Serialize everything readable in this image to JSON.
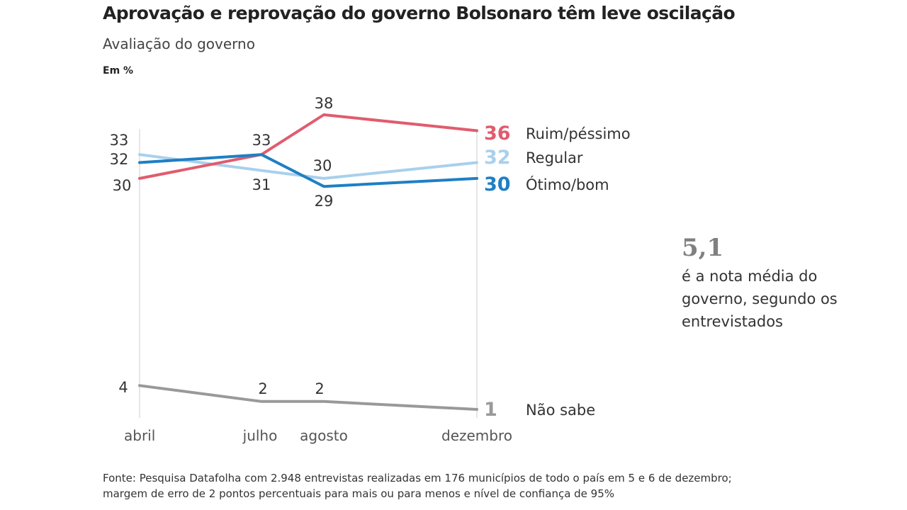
{
  "title": "Aprovação e reprovação do governo Bolsonaro têm leve oscilação",
  "subtitle": "Avaliação do governo",
  "unit": "Em %",
  "chart_data": {
    "type": "line",
    "title": "Aprovação e reprovação do governo Bolsonaro têm leve oscilação",
    "subtitle": "Avaliação do governo",
    "ylabel": "Em %",
    "categories": [
      "abril",
      "julho",
      "agosto",
      "dezembro"
    ],
    "ylim": [
      1,
      38
    ],
    "grid": false,
    "series": [
      {
        "name": "Ruim/péssimo",
        "values": [
          30,
          33,
          38,
          36
        ],
        "color": "#e05c6e",
        "point_labels": [
          "30",
          "",
          "38",
          ""
        ],
        "end_label": "36"
      },
      {
        "name": "Regular",
        "values": [
          33,
          31,
          30,
          32
        ],
        "color": "#a9d0ec",
        "point_labels": [
          "33",
          "31",
          "30",
          ""
        ],
        "end_label": "32"
      },
      {
        "name": "Ótimo/bom",
        "values": [
          32,
          33,
          29,
          30
        ],
        "color": "#1f7fc4",
        "point_labels": [
          "32",
          "33",
          "29",
          ""
        ],
        "end_label": "30"
      },
      {
        "name": "Não sabe",
        "values": [
          4,
          2,
          2,
          1
        ],
        "color": "#999999",
        "point_labels": [
          "4",
          "2",
          "2",
          ""
        ],
        "end_label": "1"
      }
    ]
  },
  "note": {
    "value": "5,1",
    "text": "é a nota média do governo, segundo os entrevistados"
  },
  "source": "Fonte: Pesquisa Datafolha com 2.948 entrevistas realizadas em 176 municípios de todo o país em 5 e 6 de dezembro; margem de erro de 2 pontos percentuais para mais ou para menos e nível de confiança de 95%"
}
